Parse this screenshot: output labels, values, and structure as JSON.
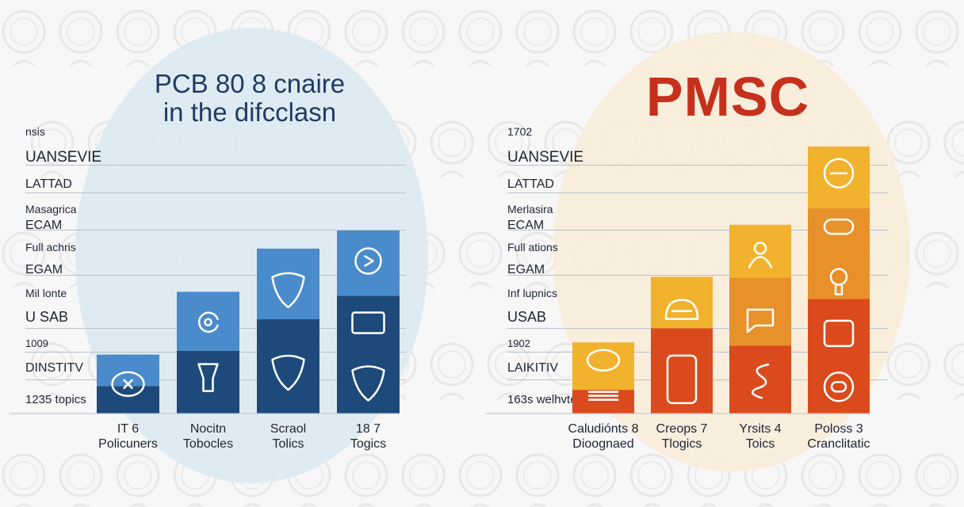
{
  "panels": [
    {
      "id": "left",
      "title_lines": [
        "PCB 80 8 cnaire",
        "in the difcclasn"
      ],
      "colors": {
        "accent": "#1f3b66",
        "blob": "#dce9f1"
      },
      "row_labels": [
        "nsis",
        "UANSEVIE",
        "LATTAD",
        "Masagrica",
        "ECAM",
        "Full achris",
        "EGAM",
        "Mil lonte",
        "U SAB",
        "1009",
        "DINSTITV",
        "1235 topics"
      ],
      "x_labels": [
        [
          "IT 6",
          "Policuners"
        ],
        [
          "Nocitn",
          "Tobocles"
        ],
        [
          "Scraol",
          "Tolics"
        ],
        [
          "18 7",
          "Togics"
        ]
      ]
    },
    {
      "id": "right",
      "title_lines": [
        "PMSC"
      ],
      "colors": {
        "accent": "#c5311c",
        "blob": "#f9ebd9"
      },
      "row_labels": [
        "1702",
        "UANSEVIE",
        "LATTAD",
        "Merlasira",
        "ECAM",
        "Full ations",
        "EGAM",
        "Inf lupnics",
        "USAB",
        "1902",
        "LAIKITIV",
        "163s welhvte"
      ],
      "x_labels": [
        [
          "Caludiónts 8",
          "Dioognaed"
        ],
        [
          "Creops 7",
          "Tlogics"
        ],
        [
          "Yrsits 4",
          "Toics"
        ],
        [
          "Poloss 3",
          "Cranclitatic"
        ]
      ]
    }
  ],
  "chart_data": [
    {
      "type": "bar",
      "stacked": true,
      "title": "PCB 80 8 cnaire in the difcclasn",
      "categories": [
        "IT 6 Policuners",
        "Nocitn Tobocles",
        "Scraol Tolics",
        "18 7 Togics"
      ],
      "series": [
        {
          "color": "#1d4a7a",
          "values": [
            35,
            80,
            120,
            150
          ]
        },
        {
          "color": "#4a8ccb",
          "values": [
            40,
            75,
            90,
            83
          ]
        }
      ],
      "icons": [
        [
          "atom-icon",
          ""
        ],
        [
          "lightbulb-icon",
          "refresh-icon"
        ],
        [
          "shield-icon",
          "shield-icon"
        ],
        [
          "shield-icon",
          "laptop-icon",
          "play-icon"
        ]
      ],
      "ylim": [
        0,
        235
      ],
      "grid": true
    },
    {
      "type": "bar",
      "stacked": true,
      "title": "PMSC",
      "categories": [
        "Caludiónts 8 Dioognaed",
        "Creops 7 Tlogics",
        "Yrsits 4 Toics",
        "Poloss 3 Cranclitatic"
      ],
      "series": [
        {
          "color": "#db4a1c",
          "values": [
            30,
            108,
            86,
            145
          ]
        },
        {
          "color": "#e8902a",
          "values": [
            0,
            0,
            86,
            115
          ]
        },
        {
          "color": "#f1b22e",
          "values": [
            60,
            65,
            67,
            78
          ]
        }
      ],
      "icons": [
        [
          "scroll-icon",
          "eye-icon"
        ],
        [
          "phone-icon",
          "car-icon"
        ],
        [
          "spring-icon",
          "chat-icon",
          "person-icon"
        ],
        [
          "circle-icon",
          "tablet-icon",
          "bulb-icon",
          "pill-icon",
          "toggle-icon"
        ]
      ],
      "ylim": [
        0,
        340
      ],
      "grid": true
    }
  ]
}
